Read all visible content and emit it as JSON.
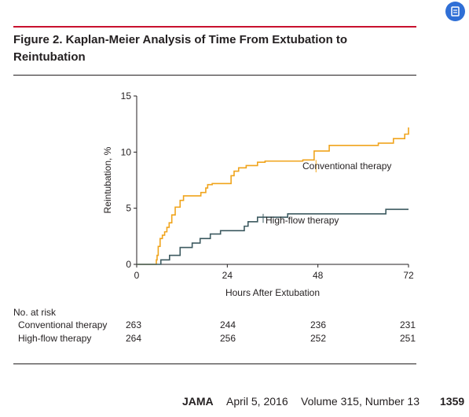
{
  "figure": {
    "title": "Figure 2. Kaplan-Meier Analysis of Time From Extubation to Reintubation"
  },
  "chart_data": {
    "type": "line",
    "step": true,
    "xlabel": "Hours After Extubation",
    "ylabel": "Reintubation, %",
    "xlim": [
      0,
      72
    ],
    "ylim": [
      0,
      15
    ],
    "xticks": [
      "0",
      "24",
      "48",
      "72"
    ],
    "yticks": [
      "0",
      "5",
      "10",
      "15"
    ],
    "grid": false,
    "series": [
      {
        "name": "Conventional therapy",
        "color": "#f0a41c",
        "x": [
          0,
          5.2,
          5.4,
          5.7,
          6.2,
          6.8,
          7.4,
          8.0,
          8.6,
          9.3,
          10.2,
          11.5,
          12.4,
          17.0,
          18.3,
          18.8,
          20.0,
          25.0,
          25.8,
          27.0,
          29.0,
          32.0,
          34.0,
          44.0,
          47.0,
          51.0,
          64.0,
          68.0,
          71.0,
          72.0
        ],
        "y": [
          0,
          0.4,
          0.8,
          1.6,
          2.3,
          2.6,
          2.9,
          3.3,
          3.7,
          4.4,
          5.1,
          5.7,
          6.1,
          6.4,
          6.8,
          7.1,
          7.2,
          7.9,
          8.3,
          8.6,
          8.8,
          9.1,
          9.2,
          9.3,
          10.1,
          10.6,
          10.8,
          11.2,
          11.6,
          12.2
        ]
      },
      {
        "name": "High-flow therapy",
        "color": "#3d5a60",
        "x": [
          0,
          6.4,
          8.7,
          11.5,
          14.7,
          16.8,
          19.5,
          22.2,
          28.5,
          29.5,
          32.0,
          40.0,
          66.0,
          72.0
        ],
        "y": [
          0,
          0.4,
          0.8,
          1.5,
          1.9,
          2.3,
          2.7,
          3.0,
          3.4,
          3.8,
          4.2,
          4.5,
          4.9,
          4.9
        ]
      }
    ],
    "risk_table": {
      "title": "No. at risk",
      "times": [
        0,
        24,
        48,
        72
      ],
      "rows": [
        {
          "label": "Conventional therapy",
          "values": [
            "263",
            "244",
            "236",
            "231"
          ]
        },
        {
          "label": "High-flow therapy",
          "values": [
            "264",
            "256",
            "252",
            "251"
          ]
        }
      ]
    }
  },
  "footer": {
    "journal": "JAMA",
    "date": "April 5, 2016",
    "volume": "Volume 315, Number 13",
    "page": "1359"
  },
  "icons": {
    "corner": "document-icon"
  }
}
